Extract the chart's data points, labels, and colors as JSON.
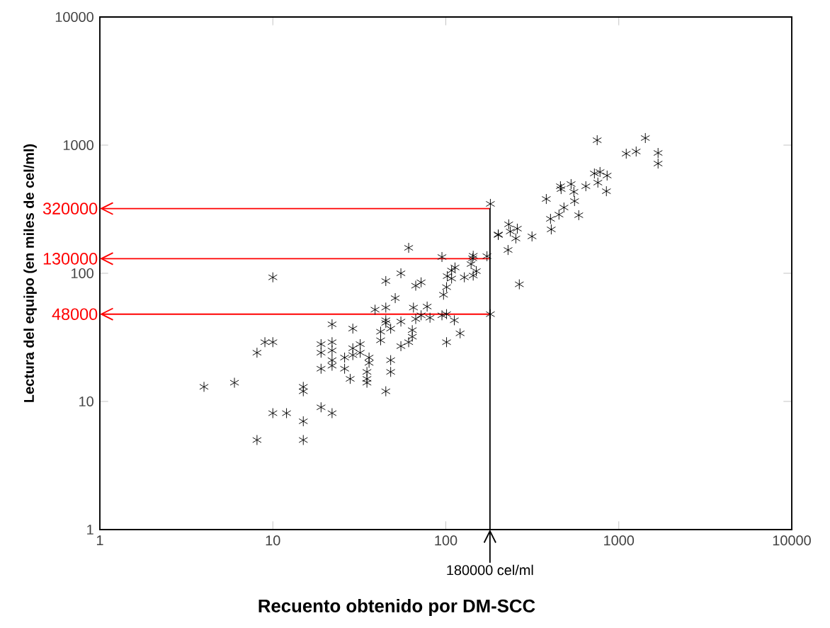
{
  "chart_data": {
    "type": "scatter",
    "xlabel": "Recuento obtenido por DM-SCC",
    "ylabel": "Lectura del equipo (en miles de cel/ml)",
    "log": "xy",
    "marker": "cross",
    "color": "#000000",
    "xlim": [
      1,
      10000
    ],
    "ylim": [
      1,
      10000
    ],
    "xticks": [
      1,
      10,
      100,
      1000,
      10000
    ],
    "yticks": [
      1,
      10,
      100,
      1000,
      10000
    ],
    "x": [
      61,
      95,
      144,
      143,
      173,
      201,
      113,
      108,
      102,
      108,
      128,
      140,
      150,
      144,
      55,
      45,
      72,
      67,
      101,
      97,
      51,
      39,
      45,
      65,
      78,
      72,
      67,
      81,
      95,
      101,
      112,
      181,
      45,
      45,
      55,
      29,
      42,
      48,
      42,
      64,
      64,
      61,
      55,
      121,
      101,
      32,
      29,
      29,
      32,
      26,
      36,
      36,
      48,
      26,
      35,
      48,
      35,
      35,
      45,
      10,
      22,
      9,
      10,
      8.1,
      19,
      22,
      19,
      22,
      22,
      22,
      19,
      28,
      4,
      6,
      15,
      15,
      19,
      10,
      12,
      22,
      15,
      8.1,
      15,
      750,
      1424,
      1104,
      1260,
      1687,
      1687,
      723,
      779,
      856,
      757,
      848,
      460,
      464,
      530,
      550,
      645,
      381,
      555,
      482,
      451,
      587,
      403,
      407,
      181,
      231,
      259,
      236,
      254,
      201,
      315,
      229,
      266
    ],
    "values": [
      158,
      134,
      137,
      131,
      136,
      199,
      111,
      105,
      95,
      91,
      93,
      118,
      104,
      96,
      100,
      87,
      85,
      80,
      78,
      68,
      64,
      52,
      54,
      54,
      55,
      47,
      44,
      45,
      47,
      48,
      43,
      48,
      43,
      41,
      42,
      37,
      35,
      37,
      30,
      36,
      32,
      29,
      27,
      34,
      29,
      28,
      26,
      23,
      24,
      22,
      22,
      20,
      21,
      18,
      17,
      17,
      15,
      14,
      12,
      93,
      40,
      29,
      29,
      24,
      28,
      29,
      24,
      25,
      21,
      19,
      18,
      15,
      13,
      14,
      13,
      12,
      9,
      8.1,
      8.1,
      8.1,
      7,
      5,
      5,
      1093,
      1136,
      858,
      892,
      869,
      718,
      601,
      617,
      579,
      510,
      437,
      478,
      454,
      497,
      432,
      478,
      380,
      366,
      326,
      287,
      284,
      266,
      220,
      348,
      241,
      223,
      212,
      187,
      201,
      194,
      152,
      82
    ],
    "ref_lines": [
      {
        "axis": "y",
        "value": 320,
        "label": "320000",
        "color": "#ff0000"
      },
      {
        "axis": "y",
        "value": 130,
        "label": "130000",
        "color": "#ff0000"
      },
      {
        "axis": "y",
        "value": 48,
        "label": "48000",
        "color": "#ff0000"
      },
      {
        "axis": "x",
        "value": 180,
        "label": "180000 cel/ml",
        "color": "#000000"
      }
    ]
  }
}
